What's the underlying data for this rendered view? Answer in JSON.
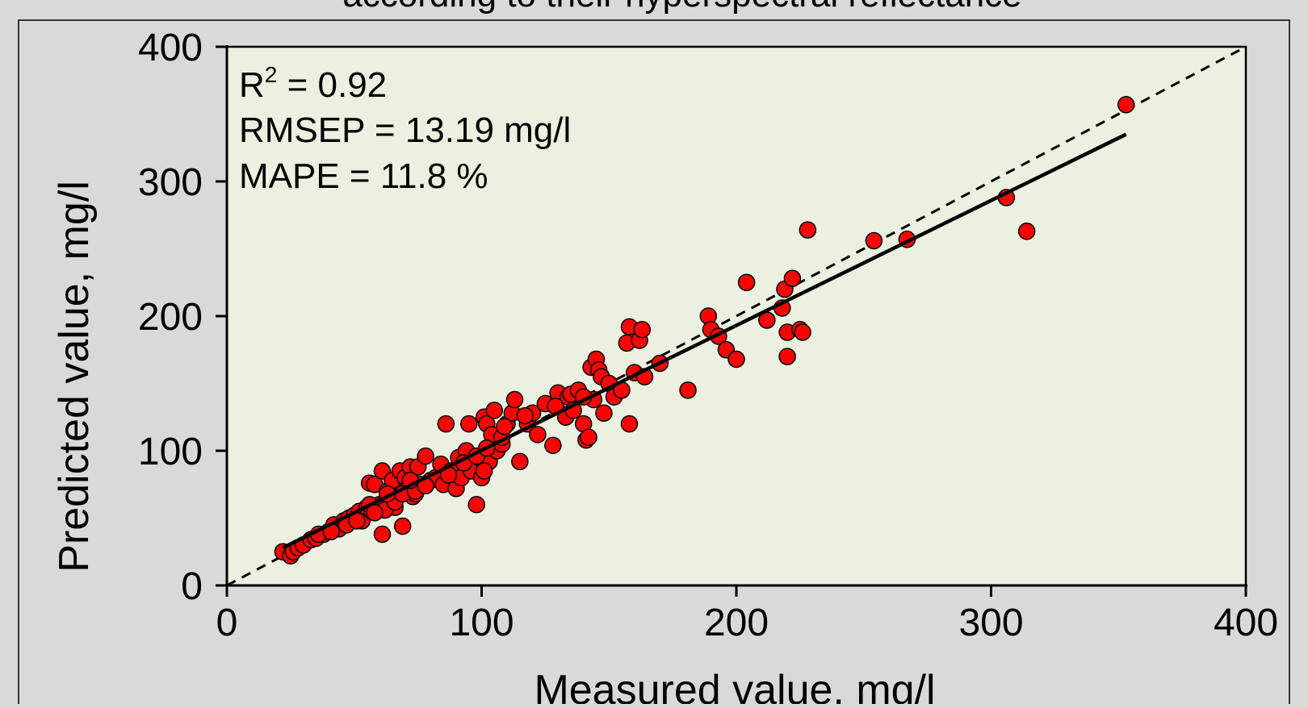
{
  "figure": {
    "title_fragment": "according to their hyperspectral reflectance"
  },
  "stats": {
    "r2_prefix": "R",
    "r2_sup": "2",
    "r2_value": " = 0.92",
    "rmsep": "RMSEP = 13.19 mg/l",
    "mape": "MAPE = 11.8 %"
  },
  "colors": {
    "figure_background": "#d9d9d9",
    "plot_background": "#ebf0e0",
    "point_fill": "#ff0000",
    "point_stroke": "#000000",
    "line": "#000000"
  },
  "chart_data": {
    "type": "scatter",
    "title": "according to their hyperspectral reflectance",
    "xlabel": "Measured value, mg/l",
    "ylabel": "Predicted value, mg/l",
    "xlim": [
      0,
      400
    ],
    "ylim": [
      0,
      400
    ],
    "x_ticks": [
      0,
      100,
      200,
      300,
      400
    ],
    "y_ticks": [
      0,
      100,
      200,
      300,
      400
    ],
    "x_tick_labels": [
      "0",
      "100",
      "200",
      "300",
      "400"
    ],
    "y_tick_labels": [
      "0",
      "100",
      "200",
      "300",
      "400"
    ],
    "grid": false,
    "legend": "none",
    "annotations": [
      "R² = 0.92",
      "RMSEP = 13.19 mg/l",
      "MAPE = 11.8 %"
    ],
    "reference_line": {
      "style": "dashed",
      "x": [
        0,
        400
      ],
      "y": [
        0,
        400
      ]
    },
    "fit_line": {
      "style": "solid",
      "x": [
        22,
        353
      ],
      "y": [
        28,
        335
      ]
    },
    "points": {
      "x": [
        22,
        25,
        26,
        28,
        30,
        33,
        35,
        38,
        40,
        42,
        44,
        46,
        48,
        50,
        52,
        53,
        55,
        56,
        58,
        60,
        61,
        62,
        63,
        64,
        65,
        66,
        68,
        70,
        71,
        72,
        73,
        74,
        75,
        76,
        78,
        80,
        82,
        84,
        85,
        86,
        88,
        90,
        91,
        92,
        94,
        95,
        96,
        98,
        99,
        100,
        101,
        102,
        103,
        104,
        105,
        106,
        108,
        110,
        112,
        113,
        115,
        118,
        120,
        122,
        125,
        128,
        130,
        133,
        134,
        135,
        136,
        138,
        140,
        141,
        142,
        143,
        144,
        145,
        146,
        147,
        148,
        150,
        152,
        155,
        157,
        158,
        158,
        160,
        162,
        163,
        164,
        170,
        181,
        189,
        190,
        193,
        196,
        200,
        204,
        212,
        218,
        219,
        220,
        220,
        222,
        225,
        226,
        228,
        254,
        267,
        306,
        314,
        353,
        36,
        41,
        47,
        51,
        57,
        62,
        66,
        69,
        74,
        78,
        87,
        93,
        98,
        102,
        108,
        117,
        129,
        140,
        61,
        69,
        56,
        63,
        58,
        72,
        101,
        109
      ],
      "y": [
        25,
        22,
        25,
        28,
        30,
        34,
        35,
        38,
        40,
        45,
        42,
        48,
        50,
        52,
        55,
        48,
        58,
        76,
        75,
        60,
        85,
        62,
        70,
        65,
        78,
        58,
        85,
        80,
        72,
        88,
        66,
        68,
        88,
        75,
        96,
        78,
        80,
        90,
        75,
        120,
        85,
        72,
        95,
        80,
        100,
        120,
        85,
        60,
        95,
        80,
        125,
        120,
        92,
        112,
        130,
        100,
        105,
        120,
        128,
        138,
        92,
        120,
        128,
        112,
        135,
        104,
        143,
        125,
        140,
        142,
        130,
        145,
        120,
        108,
        110,
        162,
        138,
        168,
        160,
        155,
        128,
        150,
        140,
        145,
        180,
        192,
        120,
        158,
        182,
        190,
        155,
        165,
        145,
        200,
        190,
        185,
        175,
        168,
        225,
        197,
        206,
        220,
        170,
        188,
        228,
        190,
        188,
        264,
        256,
        257,
        288,
        263,
        357,
        38,
        40,
        45,
        48,
        55,
        56,
        62,
        68,
        70,
        74,
        82,
        91,
        96,
        102,
        110,
        126,
        133,
        140,
        38,
        44,
        60,
        68,
        54,
        78,
        85,
        118
      ]
    }
  }
}
